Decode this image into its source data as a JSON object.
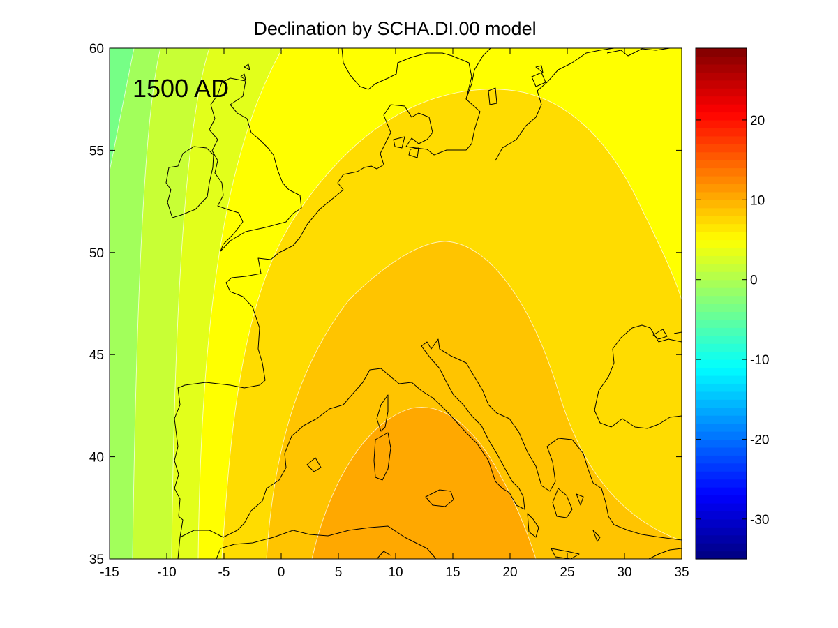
{
  "figure": {
    "title": "Declination by SCHA.DI.00 model",
    "epoch_label": "1500 AD"
  },
  "chart_data": {
    "type": "heatmap",
    "title": "Declination by SCHA.DI.00 model",
    "annotation": "1500 AD",
    "x_axis": {
      "range": [
        -15,
        35
      ],
      "ticks": [
        -15,
        -10,
        -5,
        0,
        5,
        10,
        15,
        20,
        25,
        30,
        35
      ]
    },
    "y_axis": {
      "range": [
        35,
        60
      ],
      "ticks": [
        35,
        40,
        45,
        50,
        55,
        60
      ]
    },
    "colorbar": {
      "range": [
        -35,
        29
      ],
      "ticks": [
        -30,
        -20,
        -10,
        0,
        10,
        20
      ],
      "colormap": "jet"
    },
    "contour_bands": [
      {
        "from": -6,
        "to": -4,
        "color": "#76ff86"
      },
      {
        "from": -4,
        "to": -2,
        "color": "#a2ff5b"
      },
      {
        "from": -2,
        "to": 0,
        "color": "#c8ff35"
      },
      {
        "from": 0,
        "to": 2,
        "color": "#e2ff1b"
      },
      {
        "from": 2,
        "to": 4,
        "color": "#ffff00"
      },
      {
        "from": 4,
        "to": 6,
        "color": "#ffdc00"
      },
      {
        "from": 6,
        "to": 8,
        "color": "#ffc400"
      },
      {
        "from": 8,
        "to": 10,
        "color": "#ffa800"
      }
    ],
    "grid": false,
    "coastlines": true
  }
}
